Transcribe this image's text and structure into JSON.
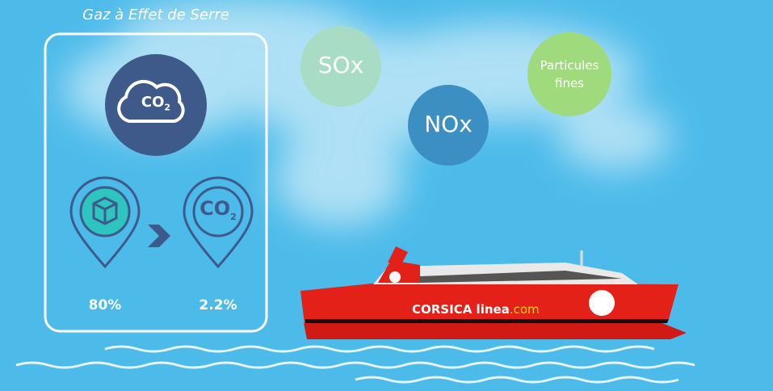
{
  "box": {
    "title": "Gaz à Effet de Serre",
    "cloud_icon": {
      "main": "CO",
      "sub": "2"
    },
    "pins": [
      {
        "label": "80%"
      },
      {
        "icon": {
          "main": "CO",
          "sub": "2"
        },
        "label": "2.2%"
      }
    ]
  },
  "bubbles": [
    {
      "label": "SOx"
    },
    {
      "label": "NOx"
    },
    {
      "label": "Particules fines"
    }
  ],
  "ship": {
    "brand": "CORSICA",
    "brand_name": "linea",
    "brand_suffix": ".com"
  }
}
